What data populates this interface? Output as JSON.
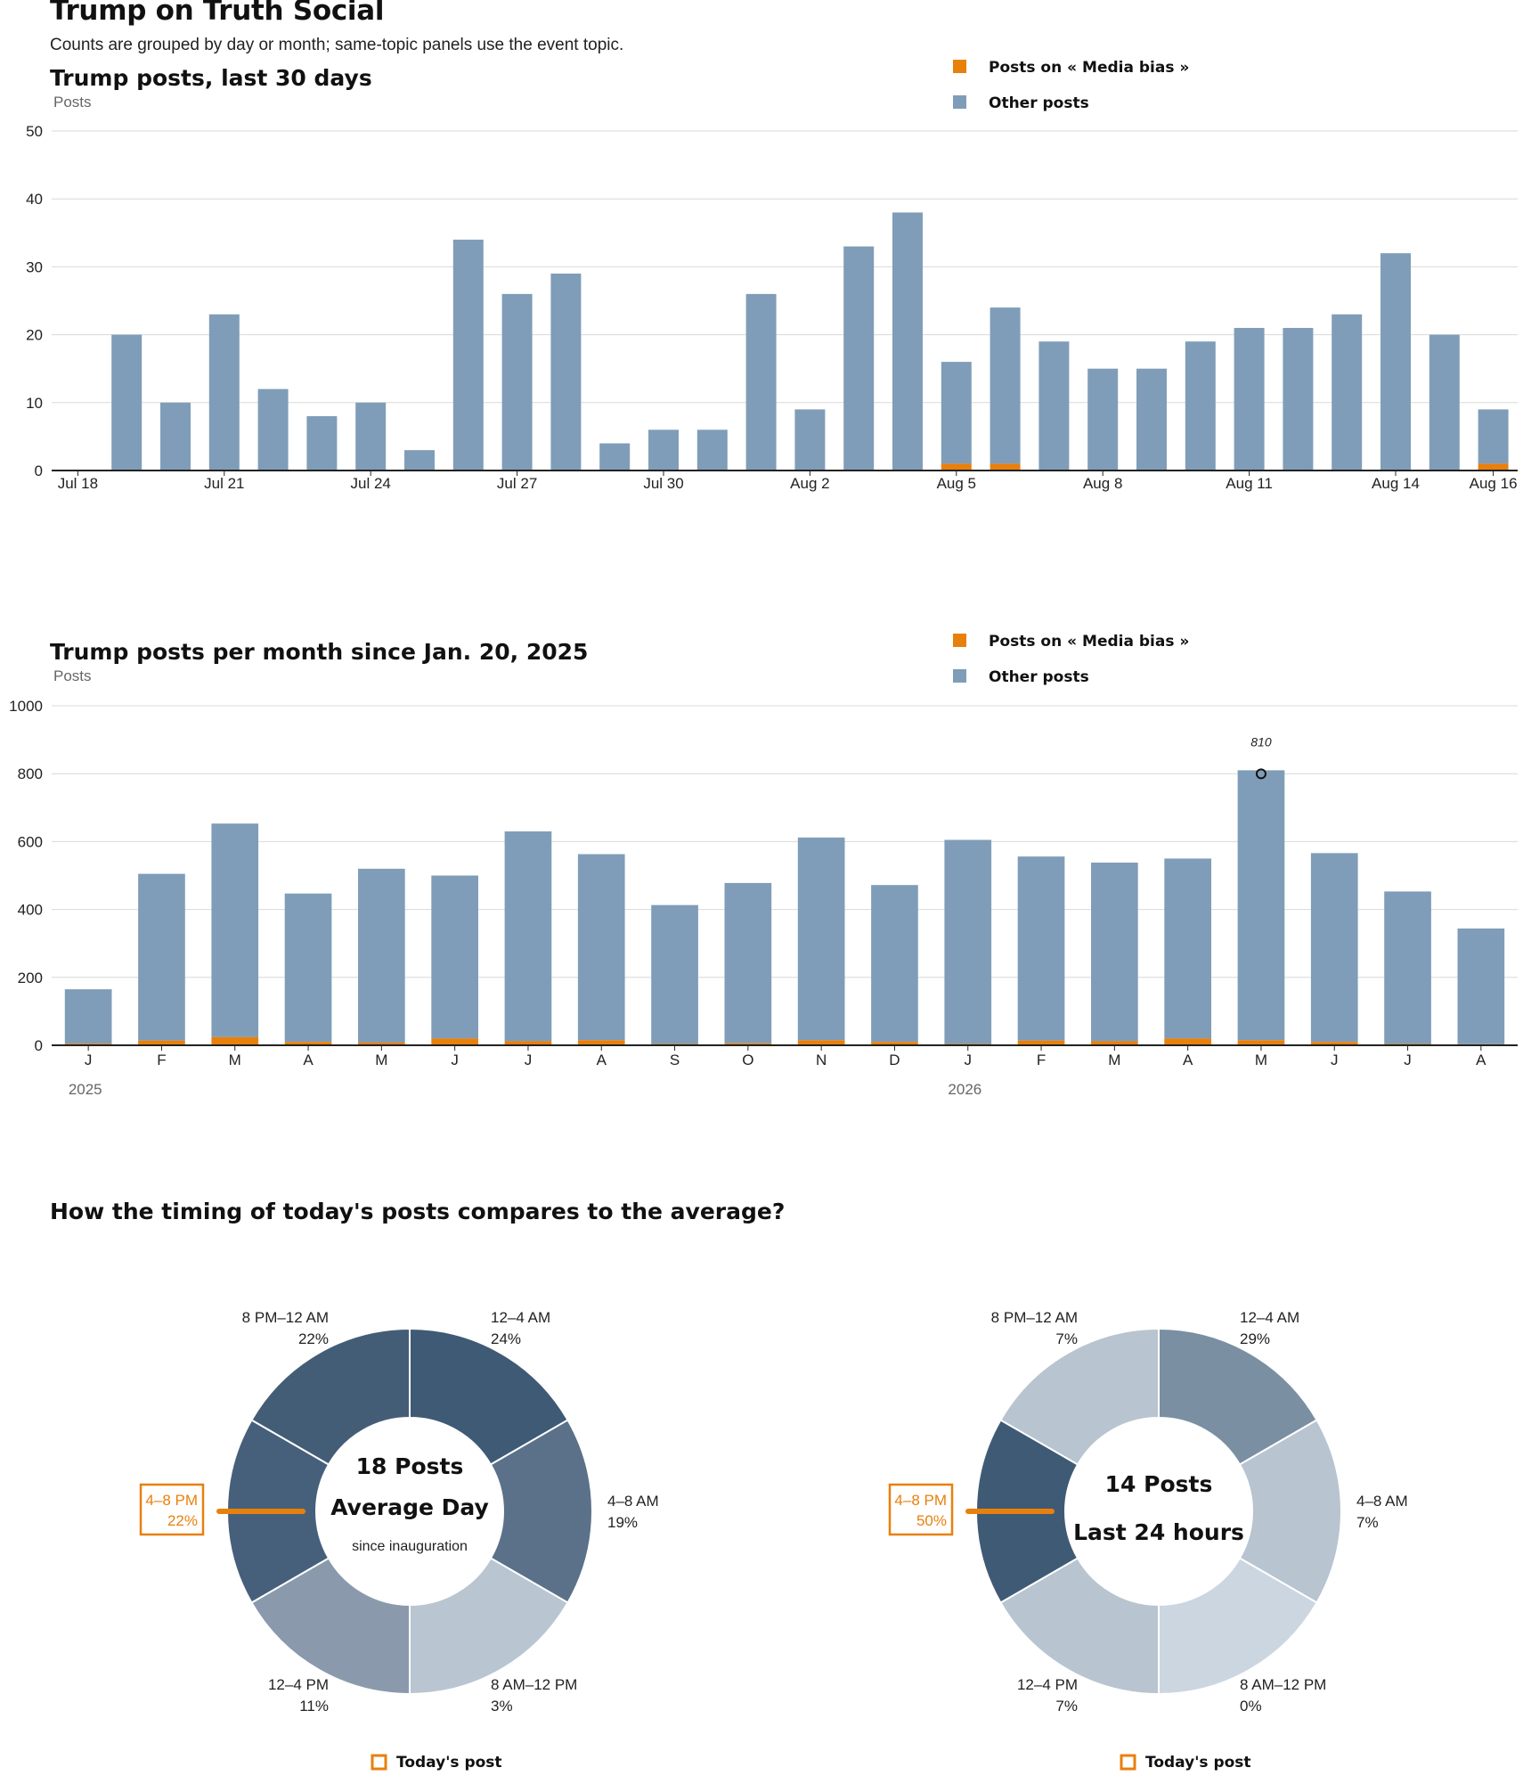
{
  "page": {
    "title": "Trump on Truth Social",
    "subtitle": "Counts are grouped by day or month; same-topic panels use the event topic."
  },
  "colors": {
    "topic": "#e8800c",
    "other": "#7f9db8",
    "axis": "#222222",
    "grid": "#d9d9d9"
  },
  "legend": {
    "topic_label": "Posts on « Media bias »",
    "other_label": "Other posts"
  },
  "chart_data": [
    {
      "id": "daily",
      "type": "bar",
      "stacked": true,
      "title": "Trump posts, last 30 days",
      "ylabel": "Posts",
      "xlabel": "",
      "ylim": [
        0,
        50
      ],
      "yticks": [
        0,
        10,
        20,
        30,
        40,
        50
      ],
      "grid": true,
      "legend_position": "top-right",
      "categories": [
        "Jul 18",
        "Jul 19",
        "Jul 20",
        "Jul 21",
        "Jul 22",
        "Jul 23",
        "Jul 24",
        "Jul 25",
        "Jul 26",
        "Jul 27",
        "Jul 28",
        "Jul 29",
        "Jul 30",
        "Jul 31",
        "Aug 1",
        "Aug 2",
        "Aug 3",
        "Aug 4",
        "Aug 5",
        "Aug 6",
        "Aug 7",
        "Aug 8",
        "Aug 9",
        "Aug 10",
        "Aug 11",
        "Aug 12",
        "Aug 13",
        "Aug 14",
        "Aug 15",
        "Aug 16"
      ],
      "tick_labels": [
        "Jul 18",
        "Jul 21",
        "Jul 24",
        "Jul 27",
        "Jul 30",
        "Aug 2",
        "Aug 5",
        "Aug 8",
        "Aug 11",
        "Aug 14",
        "Aug 16"
      ],
      "series": [
        {
          "name": "Posts on « Media bias »",
          "values": [
            0,
            0,
            0,
            0,
            0,
            0,
            0,
            0,
            0,
            0,
            0,
            0,
            0,
            0,
            0,
            0,
            0,
            0,
            1,
            1,
            0,
            0,
            0,
            0,
            0,
            0,
            0,
            0,
            0,
            1
          ]
        },
        {
          "name": "Other posts",
          "values": [
            0,
            20,
            10,
            23,
            12,
            8,
            10,
            3,
            34,
            26,
            29,
            4,
            6,
            6,
            26,
            9,
            33,
            38,
            15,
            23,
            19,
            15,
            15,
            19,
            21,
            21,
            23,
            32,
            20,
            8
          ]
        }
      ]
    },
    {
      "id": "monthly",
      "type": "bar",
      "stacked": true,
      "title": "Trump posts per month since Jan. 20, 2025",
      "ylabel": "Posts",
      "xlabel": "",
      "ylim": [
        0,
        1000
      ],
      "yticks": [
        0,
        200,
        400,
        600,
        800,
        1000
      ],
      "grid": true,
      "legend_position": "top-right",
      "categories": [
        "J",
        "F",
        "M",
        "A",
        "M",
        "J",
        "J",
        "A",
        "S",
        "O",
        "N",
        "D",
        "J",
        "F",
        "M",
        "A",
        "M",
        "J",
        "J",
        "A"
      ],
      "year_labels": [
        {
          "label": "2025",
          "index": 0
        },
        {
          "label": "2026",
          "index": 12
        }
      ],
      "annotation": {
        "index": 16,
        "label": "810"
      },
      "series": [
        {
          "name": "Posts on « Media bias »",
          "values": [
            5,
            14,
            24,
            10,
            8,
            20,
            12,
            15,
            4,
            6,
            15,
            10,
            4,
            14,
            12,
            20,
            15,
            10,
            4,
            3
          ]
        },
        {
          "name": "Other posts",
          "values": [
            160,
            491,
            629,
            437,
            512,
            480,
            618,
            548,
            409,
            472,
            597,
            462,
            601,
            542,
            526,
            530,
            795,
            556,
            449,
            341
          ]
        }
      ]
    },
    {
      "id": "avg-day",
      "type": "pie",
      "donut": true,
      "categories": [
        "12–4 AM",
        "4–8 AM",
        "8 AM–12 PM",
        "12–4 PM",
        "4–8 PM",
        "8 PM–12 AM"
      ],
      "values": [
        24,
        19,
        3,
        11,
        22,
        22
      ],
      "labels": [
        "24%",
        "19%",
        "3%",
        "11%",
        "22%",
        "22%"
      ],
      "colors": [
        "#3f5a75",
        "#5b7189",
        "#b9c5d1",
        "#8a9aac",
        "#46607b",
        "#445d77"
      ],
      "highlight_index": 4,
      "center": {
        "line1": "18 Posts",
        "line2": "Average Day",
        "line3": "since inauguration"
      }
    },
    {
      "id": "last-24h",
      "type": "pie",
      "donut": true,
      "categories": [
        "12–4 AM",
        "4–8 AM",
        "8 AM–12 PM",
        "12–4 PM",
        "4–8 PM",
        "8 PM–12 AM"
      ],
      "values": [
        29,
        7,
        0,
        7,
        50,
        7
      ],
      "labels": [
        "29%",
        "7%",
        "0%",
        "7%",
        "50%",
        "7%"
      ],
      "colors": [
        "#7a8fa2",
        "#b8c4cf",
        "#ccd6e0",
        "#b8c4cf",
        "#3f5a75",
        "#b8c4cf"
      ],
      "highlight_index": 4,
      "center": {
        "line1": "14 Posts",
        "line2": "Last 24 hours",
        "line3": ""
      }
    }
  ],
  "timing_section": {
    "title": "How the timing of today's posts compares to the average?",
    "today_label": "Today's post"
  }
}
